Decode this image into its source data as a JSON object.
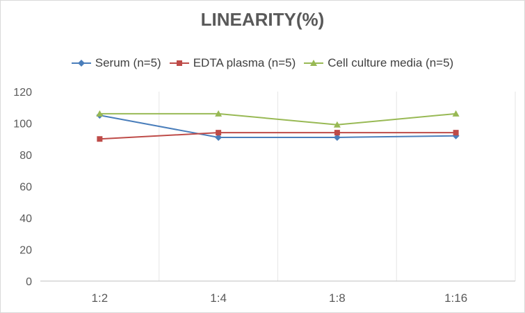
{
  "chart_data": {
    "type": "line",
    "title": "LINEARITY(%)",
    "xlabel": "",
    "ylabel": "",
    "categories": [
      "1:2",
      "1:4",
      "1:8",
      "1:16"
    ],
    "ylim": [
      0,
      120
    ],
    "yticks": [
      "0",
      "20",
      "40",
      "60",
      "80",
      "100",
      "120"
    ],
    "grid": "vertical",
    "legend_position": "top",
    "series": [
      {
        "name": "Serum (n=5)",
        "values": [
          105,
          91,
          91,
          92
        ],
        "color": "#4a7ebb",
        "marker": "diamond"
      },
      {
        "name": "EDTA plasma (n=5)",
        "values": [
          90,
          94,
          94,
          94
        ],
        "color": "#be4b48",
        "marker": "square"
      },
      {
        "name": "Cell culture media (n=5)",
        "values": [
          106,
          106,
          99,
          106
        ],
        "color": "#98b954",
        "marker": "triangle"
      }
    ]
  }
}
